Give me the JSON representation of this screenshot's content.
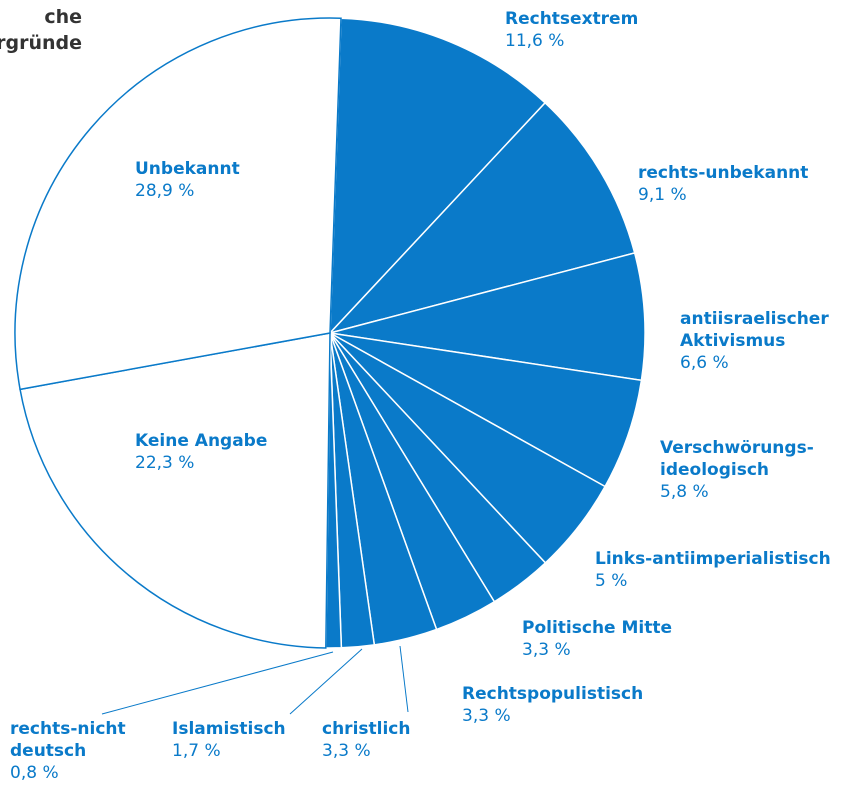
{
  "chart_data": {
    "type": "pie",
    "title": [
      "che",
      "rgründe"
    ],
    "categories": [
      "Rechtsextrem",
      "rechts-unbekannt",
      "antiisraelischer\nAktivismus",
      "Verschwörungs-\nideologisch",
      "Links-antiimperialistisch",
      "Politische Mitte",
      "Rechtspopulistisch",
      "christlich",
      "Islamistisch",
      "rechts-nicht\ndeutsch",
      "Keine Angabe",
      "Unbekannt"
    ],
    "values": [
      11.6,
      9.1,
      6.6,
      5.8,
      5,
      3.3,
      3.3,
      3.3,
      1.7,
      0.8,
      22.3,
      28.9
    ],
    "value_labels": [
      "11,6 %",
      "9,1 %",
      "6,6 %",
      "5,8 %",
      "5 %",
      "3,3 %",
      "3,3 %",
      "3,3 %",
      "1,7 %",
      "0,8 %",
      "22,3 %",
      "28,9 %"
    ],
    "colors": [
      "#0a7ac9",
      "#0a7ac9",
      "#0a7ac9",
      "#0a7ac9",
      "#0a7ac9",
      "#0a7ac9",
      "#0a7ac9",
      "#0a7ac9",
      "#0a7ac9",
      "#0a7ac9",
      "#ffffff",
      "#ffffff"
    ]
  }
}
